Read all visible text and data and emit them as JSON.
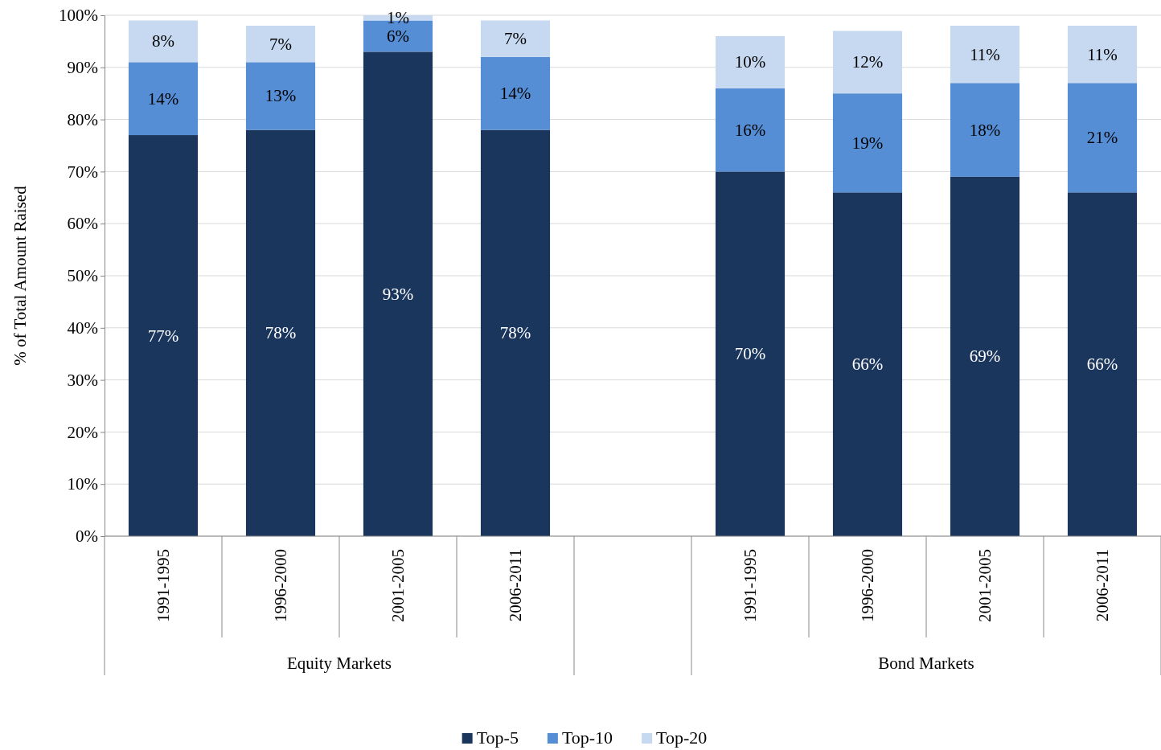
{
  "chart_data": {
    "type": "bar",
    "stacked": true,
    "ylabel": "% of Total Amount Raised",
    "categories": [
      "1991-1995",
      "1996-2000",
      "2001-2005",
      "2006-2011",
      null,
      "1991-1995",
      "1996-2000",
      "2001-2005",
      "2006-2011"
    ],
    "series": [
      {
        "name": "Top-5",
        "color": "#1b365d",
        "values": [
          77,
          78,
          93,
          78,
          null,
          70,
          66,
          69,
          66
        ],
        "value_labels": [
          "77%",
          "78%",
          "93%",
          "78%",
          null,
          "70%",
          "66%",
          "69%",
          "66%"
        ]
      },
      {
        "name": "Top-10",
        "color": "#558ed5",
        "values": [
          14,
          13,
          6,
          14,
          null,
          16,
          19,
          18,
          21
        ],
        "value_labels": [
          "14%",
          "13%",
          "6%",
          "14%",
          null,
          "16%",
          "19%",
          "18%",
          "21%"
        ]
      },
      {
        "name": "Top-20",
        "color": "#c6d9f1",
        "values": [
          8,
          7,
          1,
          7,
          null,
          10,
          12,
          11,
          11
        ],
        "value_labels": [
          "8%",
          "7%",
          "1%",
          "7%",
          null,
          "10%",
          "12%",
          "11%",
          "11%"
        ]
      }
    ],
    "ylim": [
      0,
      100
    ],
    "yticks": [
      {
        "value": 0,
        "label": "0%"
      },
      {
        "value": 10,
        "label": "10%"
      },
      {
        "value": 20,
        "label": "20%"
      },
      {
        "value": 30,
        "label": "30%"
      },
      {
        "value": 40,
        "label": "40%"
      },
      {
        "value": 50,
        "label": "50%"
      },
      {
        "value": 60,
        "label": "60%"
      },
      {
        "value": 70,
        "label": "70%"
      },
      {
        "value": 80,
        "label": "80%"
      },
      {
        "value": 90,
        "label": "90%"
      },
      {
        "value": 100,
        "label": "100%"
      }
    ],
    "annotations": [
      "Equity Markets",
      "Bond Markets"
    ],
    "grid": "y",
    "legend": "bottom"
  }
}
